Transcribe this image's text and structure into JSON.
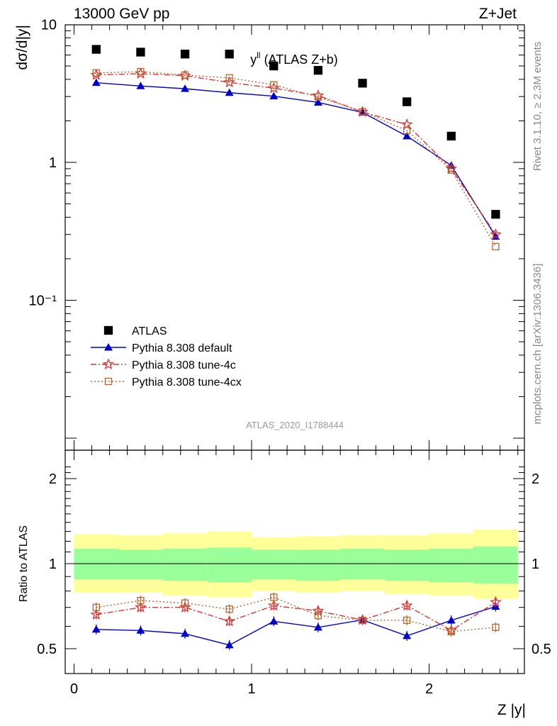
{
  "header": {
    "left": "13000 GeV pp",
    "right": "Z+Jet"
  },
  "side_labels": {
    "rivet": "Rivet 3.1.10, ≥ 2.3M events",
    "mcplots": "mcplots.cern.ch [arXiv:1306.3436]"
  },
  "colors": {
    "atlas": "#000000",
    "default": "#0000cc",
    "tune4c": "#e03030",
    "tune4cx": "#b8642a",
    "band_inner": "#99ff99",
    "band_outer": "#ffff99",
    "analysis_label": "#999999"
  },
  "chart_data": {
    "type": "scatter",
    "title": "y",
    "title_superscript": "ll",
    "title_suffix": " (ATLAS Z+b)",
    "analysis_id": "ATLAS_2020_I1788444",
    "xlabel": "Z |y|",
    "ylabel": "dσ/d|y|",
    "ratio_ylabel": "Ratio to ATLAS",
    "log_y": true,
    "xlim": [
      -0.1,
      2.55
    ],
    "ylim": [
      0.08,
      80
    ],
    "ratio_ylim": [
      0.4,
      2.3
    ],
    "x_ticks": [
      "0",
      "1",
      "2"
    ],
    "y_ticks": [
      "10",
      "1",
      "10⁻¹"
    ],
    "ratio_y_ticks": [
      "0.5",
      "1",
      "2"
    ],
    "legend_position": "center-left",
    "x": [
      0.125,
      0.375,
      0.625,
      0.875,
      1.125,
      1.375,
      1.625,
      1.875,
      2.125,
      2.375
    ],
    "x_edges": [
      0.0,
      0.25,
      0.5,
      0.75,
      1.0,
      1.25,
      1.5,
      1.75,
      2.0,
      2.25,
      2.5
    ],
    "series": [
      {
        "name": "ATLAS",
        "key": "atlas",
        "values": [
          6.6,
          6.3,
          6.1,
          6.1,
          5.0,
          4.65,
          3.75,
          2.75,
          1.55,
          0.42
        ]
      },
      {
        "name": "Pythia 8.308 default",
        "key": "default",
        "values": [
          3.78,
          3.58,
          3.42,
          3.2,
          3.02,
          2.72,
          2.3,
          1.55,
          0.95,
          0.29
        ]
      },
      {
        "name": "Pythia 8.308 tune-4c",
        "key": "tune4c",
        "values": [
          4.3,
          4.4,
          4.25,
          3.8,
          3.45,
          3.05,
          2.32,
          1.88,
          0.9,
          0.3
        ]
      },
      {
        "name": "Pythia 8.308 tune-4cx",
        "key": "tune4cx",
        "values": [
          4.45,
          4.55,
          4.3,
          4.1,
          3.65,
          2.98,
          2.33,
          1.7,
          0.88,
          0.245
        ]
      }
    ],
    "ratio_series": [
      {
        "key": "default",
        "values": [
          0.585,
          0.58,
          0.565,
          0.515,
          0.625,
          0.595,
          0.632,
          0.555,
          0.63,
          0.705
        ]
      },
      {
        "key": "tune4c",
        "values": [
          0.66,
          0.7,
          0.7,
          0.625,
          0.71,
          0.68,
          0.632,
          0.71,
          0.58,
          0.73
        ]
      },
      {
        "key": "tune4cx",
        "values": [
          0.7,
          0.74,
          0.725,
          0.69,
          0.76,
          0.655,
          0.63,
          0.63,
          0.575,
          0.595
        ]
      }
    ],
    "band_inner": [
      [
        0.88,
        1.13
      ],
      [
        0.88,
        1.12
      ],
      [
        0.87,
        1.13
      ],
      [
        0.86,
        1.14
      ],
      [
        0.88,
        1.12
      ],
      [
        0.87,
        1.12
      ],
      [
        0.88,
        1.13
      ],
      [
        0.87,
        1.12
      ],
      [
        0.86,
        1.13
      ],
      [
        0.85,
        1.15
      ]
    ],
    "band_outer": [
      [
        0.79,
        1.27
      ],
      [
        0.79,
        1.26
      ],
      [
        0.77,
        1.28
      ],
      [
        0.76,
        1.3
      ],
      [
        0.8,
        1.24
      ],
      [
        0.79,
        1.25
      ],
      [
        0.8,
        1.26
      ],
      [
        0.78,
        1.26
      ],
      [
        0.77,
        1.28
      ],
      [
        0.75,
        1.32
      ]
    ]
  }
}
